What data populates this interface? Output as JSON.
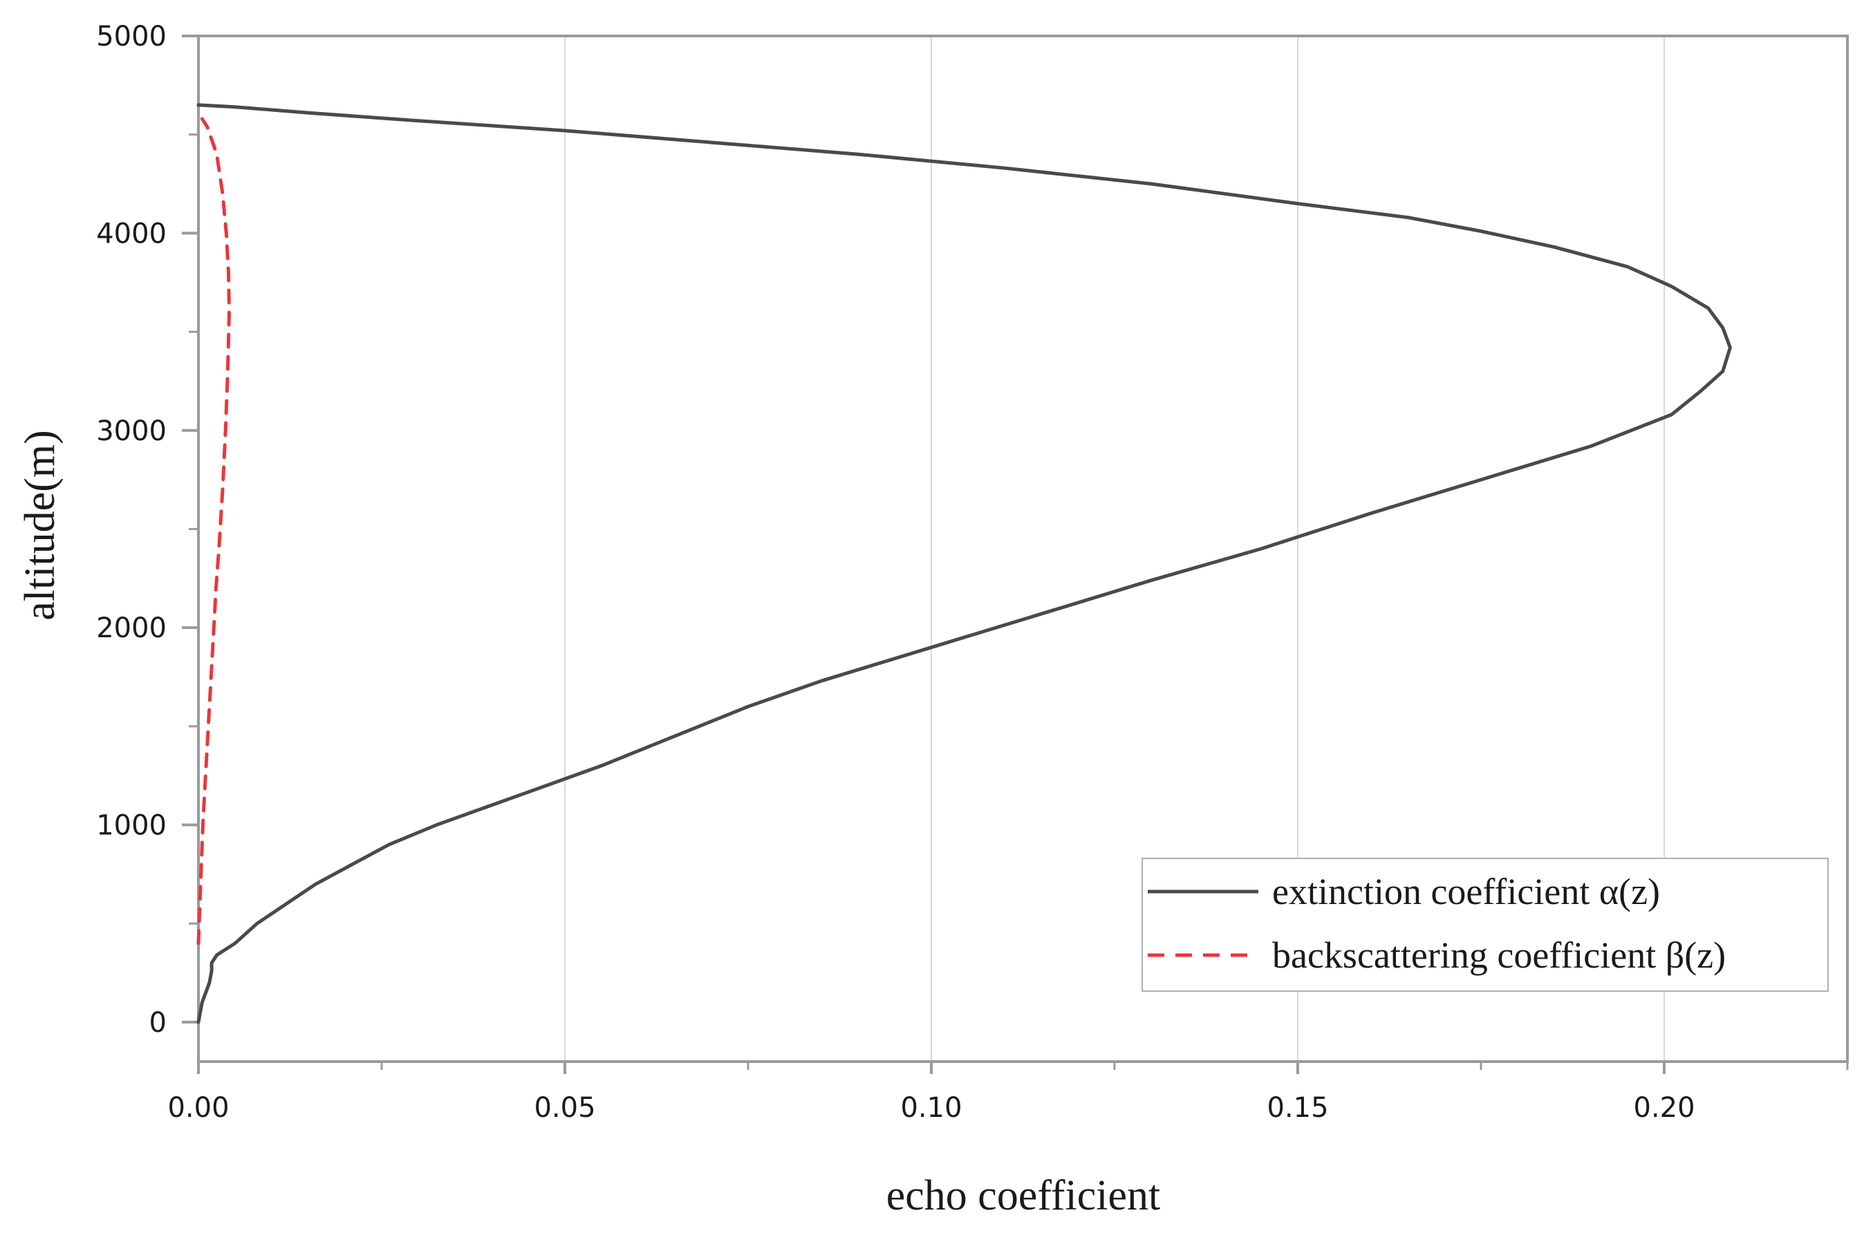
{
  "chart_data": {
    "type": "line",
    "xlabel": "echo coefficient",
    "ylabel": "altitude(m)",
    "xlim": [
      0,
      0.225
    ],
    "ylim": [
      -200,
      5000
    ],
    "x_ticks": [
      0.0,
      0.05,
      0.1,
      0.15,
      0.2
    ],
    "x_tick_labels": [
      "0.00",
      "0.05",
      "0.10",
      "0.15",
      "0.20"
    ],
    "y_ticks": [
      0,
      1000,
      2000,
      3000,
      4000,
      5000
    ],
    "y_tick_labels": [
      "0",
      "1000",
      "2000",
      "3000",
      "4000",
      "5000"
    ],
    "grid": "vertical",
    "legend_position": "bottom-right",
    "series": [
      {
        "name": "extinction coefficient α(z)",
        "color": "#4a4a4a",
        "style": "solid",
        "points": [
          [
            0.0,
            0
          ],
          [
            0.0005,
            100
          ],
          [
            0.0015,
            200
          ],
          [
            0.0018,
            260
          ],
          [
            0.0018,
            300
          ],
          [
            0.0025,
            340
          ],
          [
            0.005,
            400
          ],
          [
            0.008,
            500
          ],
          [
            0.012,
            600
          ],
          [
            0.016,
            700
          ],
          [
            0.021,
            800
          ],
          [
            0.026,
            900
          ],
          [
            0.0325,
            1000
          ],
          [
            0.04,
            1100
          ],
          [
            0.0475,
            1200
          ],
          [
            0.055,
            1300
          ],
          [
            0.065,
            1450
          ],
          [
            0.075,
            1600
          ],
          [
            0.085,
            1730
          ],
          [
            0.1,
            1900
          ],
          [
            0.115,
            2070
          ],
          [
            0.13,
            2240
          ],
          [
            0.145,
            2400
          ],
          [
            0.16,
            2580
          ],
          [
            0.175,
            2750
          ],
          [
            0.19,
            2920
          ],
          [
            0.201,
            3080
          ],
          [
            0.205,
            3200
          ],
          [
            0.208,
            3300
          ],
          [
            0.209,
            3420
          ],
          [
            0.208,
            3520
          ],
          [
            0.206,
            3620
          ],
          [
            0.201,
            3730
          ],
          [
            0.195,
            3830
          ],
          [
            0.185,
            3930
          ],
          [
            0.175,
            4010
          ],
          [
            0.165,
            4080
          ],
          [
            0.15,
            4150
          ],
          [
            0.13,
            4250
          ],
          [
            0.11,
            4330
          ],
          [
            0.09,
            4400
          ],
          [
            0.07,
            4460
          ],
          [
            0.05,
            4520
          ],
          [
            0.03,
            4570
          ],
          [
            0.015,
            4610
          ],
          [
            0.005,
            4640
          ],
          [
            0.0,
            4650
          ]
        ]
      },
      {
        "name": "backscattering coefficient β(z)",
        "color": "#e8383d",
        "style": "dashed",
        "points": [
          [
            0.0,
            400
          ],
          [
            0.0002,
            600
          ],
          [
            0.0004,
            800
          ],
          [
            0.0006,
            1000
          ],
          [
            0.0009,
            1200
          ],
          [
            0.0012,
            1400
          ],
          [
            0.0015,
            1600
          ],
          [
            0.0018,
            1800
          ],
          [
            0.0021,
            2000
          ],
          [
            0.0024,
            2200
          ],
          [
            0.0028,
            2400
          ],
          [
            0.0033,
            2700
          ],
          [
            0.0037,
            3000
          ],
          [
            0.004,
            3300
          ],
          [
            0.0042,
            3600
          ],
          [
            0.0041,
            3800
          ],
          [
            0.0038,
            4000
          ],
          [
            0.0033,
            4200
          ],
          [
            0.0025,
            4400
          ],
          [
            0.0012,
            4540
          ],
          [
            0.0005,
            4580
          ]
        ]
      }
    ]
  }
}
